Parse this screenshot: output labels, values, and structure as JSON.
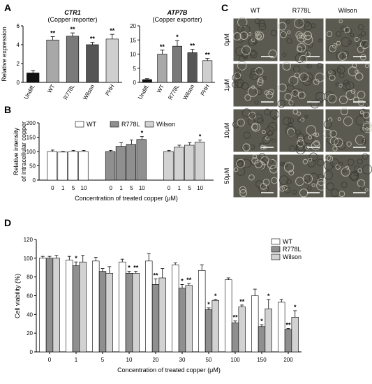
{
  "panels": {
    "A": "A",
    "B": "B",
    "C": "C",
    "D": "D"
  },
  "chart_data": [
    {
      "id": "A1",
      "type": "bar",
      "title": "CTR1",
      "subtitle": "(Copper importer)",
      "ylabel": "Relative expression",
      "categories": [
        "Undiff.",
        "WT",
        "R778L",
        "Wilson",
        "PHH"
      ],
      "values": [
        1.0,
        4.5,
        4.9,
        4.0,
        4.6
      ],
      "errors": [
        0.25,
        0.35,
        0.35,
        0.25,
        0.5
      ],
      "annotations": [
        "",
        "**",
        "**",
        "**",
        "**"
      ],
      "colors": [
        "#111111",
        "#a8a8a8",
        "#7a7a7a",
        "#555555",
        "#cfcfcf"
      ],
      "ylim": [
        0,
        6
      ],
      "yticks": [
        0,
        2,
        4,
        6
      ]
    },
    {
      "id": "A2",
      "type": "bar",
      "title": "ATP7B",
      "subtitle": "(Copper exporter)",
      "ylabel": "",
      "categories": [
        "Undiff.",
        "WT",
        "R778L",
        "Wilson",
        "PHH"
      ],
      "values": [
        1.0,
        10.0,
        12.8,
        10.5,
        7.7
      ],
      "errors": [
        0.3,
        1.4,
        2.0,
        1.2,
        0.8
      ],
      "annotations": [
        "",
        "**",
        "*",
        "**",
        "**"
      ],
      "colors": [
        "#111111",
        "#a8a8a8",
        "#7a7a7a",
        "#555555",
        "#cfcfcf"
      ],
      "ylim": [
        0,
        20
      ],
      "yticks": [
        0,
        5,
        10,
        15,
        20
      ]
    },
    {
      "id": "B",
      "type": "bar",
      "ylabel": "Relative intensity of intracellular copper",
      "xlabel": "Concentration of treated copper (μM)",
      "categories": [
        "0",
        "1",
        "5",
        "10"
      ],
      "series": [
        {
          "name": "WT",
          "color": "#ffffff",
          "values": [
            100,
            98,
            100,
            100
          ],
          "errors": [
            5,
            2,
            4,
            4
          ],
          "annotations": [
            "",
            "",
            "",
            ""
          ]
        },
        {
          "name": "R778L",
          "color": "#8f8f8f",
          "values": [
            100,
            118,
            125,
            142
          ],
          "errors": [
            4,
            13,
            15,
            10
          ],
          "annotations": [
            "",
            "",
            "",
            "*"
          ]
        },
        {
          "name": "Wilson",
          "color": "#d2d2d2",
          "values": [
            100,
            115,
            122,
            133
          ],
          "errors": [
            4,
            7,
            9,
            7
          ],
          "annotations": [
            "",
            "",
            "",
            "*"
          ]
        }
      ],
      "ylim": [
        0,
        200
      ],
      "yticks": [
        0,
        50,
        100,
        150,
        200
      ]
    },
    {
      "id": "D",
      "type": "bar",
      "ylabel": "Cell viability (%)",
      "xlabel": "Concentration of treated copper (μM)",
      "categories": [
        "0",
        "1",
        "5",
        "10",
        "20",
        "30",
        "50",
        "100",
        "150",
        "200"
      ],
      "series": [
        {
          "name": "WT",
          "color": "#ffffff",
          "values": [
            100,
            98,
            97,
            96,
            97,
            93,
            87,
            77,
            60,
            53
          ],
          "errors": [
            2,
            4,
            4,
            3,
            8,
            2,
            6,
            2,
            7,
            3
          ],
          "annotations": [
            "",
            "",
            "",
            "",
            "",
            "",
            "",
            "",
            "",
            ""
          ]
        },
        {
          "name": "R778L",
          "color": "#8f8f8f",
          "values": [
            100,
            92,
            86,
            84,
            72,
            68,
            45,
            31,
            27,
            24
          ],
          "errors": [
            2,
            4,
            3,
            2,
            6,
            4,
            2,
            2,
            2,
            1
          ],
          "annotations": [
            "",
            "*",
            "",
            "*",
            "**",
            "*",
            "*",
            "**",
            "*",
            "**"
          ]
        },
        {
          "name": "Wilson",
          "color": "#d2d2d2",
          "values": [
            100,
            96,
            84,
            84,
            79,
            71,
            55,
            48,
            46,
            37
          ],
          "errors": [
            3,
            7,
            7,
            2,
            10,
            2,
            1,
            2,
            10,
            7
          ],
          "annotations": [
            "",
            "",
            "",
            "**",
            "",
            "**",
            "*",
            "**",
            "*",
            "*"
          ]
        }
      ],
      "ylim": [
        0,
        120
      ],
      "yticks": [
        0,
        20,
        40,
        60,
        80,
        100,
        120
      ]
    }
  ],
  "micrographs": {
    "columns": [
      "WT",
      "R778L",
      "Wilson"
    ],
    "rows": [
      "0μM",
      "1μM",
      "10μM",
      "50μM"
    ]
  }
}
